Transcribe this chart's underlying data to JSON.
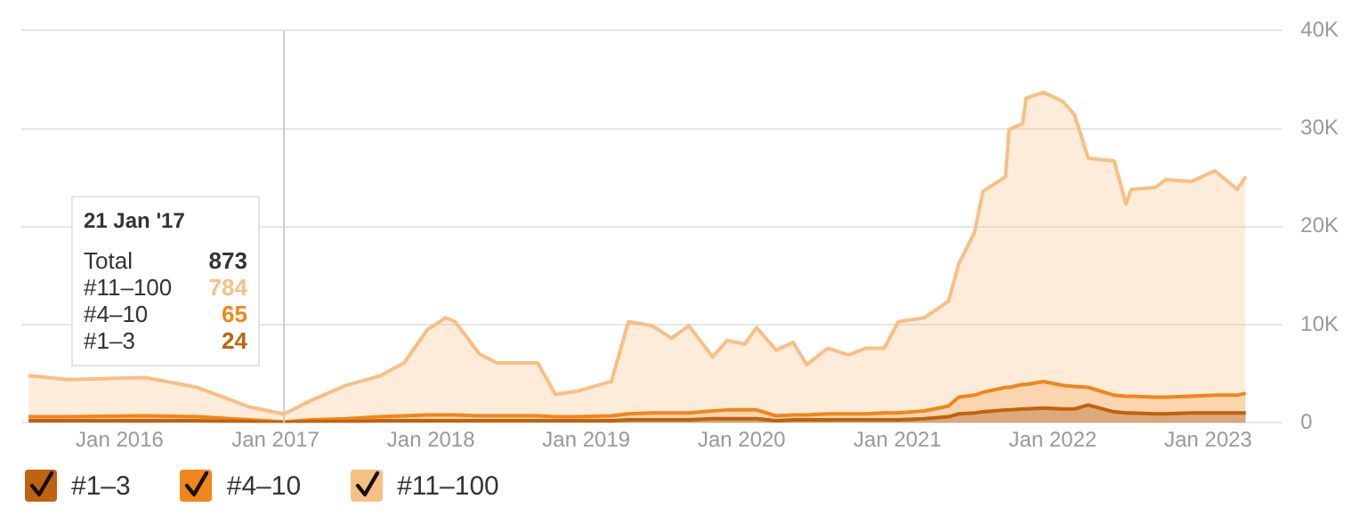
{
  "chart_data": {
    "type": "area",
    "stacked": true,
    "grid": "y",
    "legend": "bottom left",
    "x": [
      "2015-06-01",
      "2015-09-01",
      "2016-03-01",
      "2016-07-01",
      "2016-11-01",
      "2017-01-21",
      "2017-03-27",
      "2017-06-15",
      "2017-09-05",
      "2017-10-30",
      "2017-12-24",
      "2018-02-05",
      "2018-02-27",
      "2018-04-25",
      "2018-06-05",
      "2018-09-09",
      "2018-10-20",
      "2018-12-10",
      "2019-03-01",
      "2019-04-10",
      "2019-06-05",
      "2019-07-20",
      "2019-08-30",
      "2019-10-25",
      "2019-11-28",
      "2020-01-08",
      "2020-02-05",
      "2020-03-22",
      "2020-05-01",
      "2020-06-02",
      "2020-07-21",
      "2020-09-08",
      "2020-10-19",
      "2020-12-01",
      "2021-01-03",
      "2021-03-05",
      "2021-05-01",
      "2021-05-25",
      "2021-07-01",
      "2021-07-21",
      "2021-09-12",
      "2021-09-20",
      "2021-10-22",
      "2021-10-30",
      "2021-12-10",
      "2022-01-24",
      "2022-02-21",
      "2022-03-25",
      "2022-05-25",
      "2022-06-22",
      "2022-07-04",
      "2022-08-30",
      "2022-09-23",
      "2022-11-22",
      "2023-01-17",
      "2023-03-10",
      "2023-03-30"
    ],
    "series": [
      {
        "name": "#1–3",
        "color": "#c0620e",
        "values": [
          200,
          200,
          200,
          200,
          100,
          24,
          100,
          100,
          200,
          200,
          200,
          200,
          200,
          200,
          200,
          200,
          200,
          200,
          200,
          300,
          300,
          300,
          300,
          400,
          400,
          400,
          400,
          200,
          300,
          300,
          300,
          300,
          300,
          300,
          300,
          400,
          600,
          900,
          1000,
          1100,
          1300,
          1300,
          1400,
          1400,
          1500,
          1400,
          1400,
          1800,
          1100,
          1000,
          1000,
          900,
          900,
          1000,
          1000,
          1000,
          1000
        ]
      },
      {
        "name": "#4–10",
        "color": "#f0861a",
        "values": [
          400,
          400,
          500,
          400,
          200,
          65,
          200,
          300,
          400,
          500,
          600,
          600,
          600,
          500,
          500,
          500,
          400,
          400,
          500,
          600,
          700,
          700,
          700,
          800,
          900,
          900,
          900,
          500,
          500,
          500,
          600,
          600,
          600,
          700,
          700,
          800,
          1100,
          1700,
          1800,
          2000,
          2300,
          2300,
          2500,
          2500,
          2700,
          2400,
          2300,
          1800,
          1700,
          1700,
          1700,
          1700,
          1700,
          1700,
          1800,
          1800,
          2000
        ]
      },
      {
        "name": "#11–100",
        "color": "#f8bf85",
        "values": [
          4200,
          3800,
          3900,
          3000,
          1300,
          784,
          2000,
          3400,
          4200,
          5400,
          8700,
          9900,
          9500,
          6300,
          5400,
          5400,
          2300,
          2600,
          3500,
          9400,
          8900,
          7600,
          8900,
          5500,
          7100,
          6700,
          8400,
          6700,
          7400,
          5100,
          6700,
          6000,
          6700,
          6600,
          9300,
          9500,
          10700,
          13600,
          16600,
          20500,
          21500,
          26300,
          26600,
          29200,
          29500,
          29000,
          27700,
          23400,
          23900,
          19600,
          21100,
          21400,
          22200,
          21900,
          22900,
          21000,
          22100
        ]
      }
    ],
    "xlim": [
      "2015-05-15",
      "2023-06-25"
    ],
    "xticks": [
      {
        "value": "2016-01-01",
        "label": "Jan 2016"
      },
      {
        "value": "2017-01-01",
        "label": "Jan 2017"
      },
      {
        "value": "2018-01-01",
        "label": "Jan 2018"
      },
      {
        "value": "2019-01-01",
        "label": "Jan 2019"
      },
      {
        "value": "2020-01-01",
        "label": "Jan 2020"
      },
      {
        "value": "2021-01-01",
        "label": "Jan 2021"
      },
      {
        "value": "2022-01-01",
        "label": "Jan 2022"
      },
      {
        "value": "2023-01-01",
        "label": "Jan 2023"
      }
    ],
    "ylim": [
      0,
      40000
    ],
    "yticks": [
      0,
      {
        "value": 10000,
        "label": "10K"
      },
      {
        "value": 20000,
        "label": "20K"
      },
      {
        "value": 30000,
        "label": "30K"
      },
      {
        "value": 40000,
        "label": "40K"
      }
    ],
    "ref_lines": [
      {
        "axis": "x",
        "value": "2017-01-21",
        "color": "#cccccc"
      }
    ],
    "annotations": [
      "21 Jan '17",
      "Total",
      "873",
      "784",
      "65",
      "24"
    ]
  }
}
